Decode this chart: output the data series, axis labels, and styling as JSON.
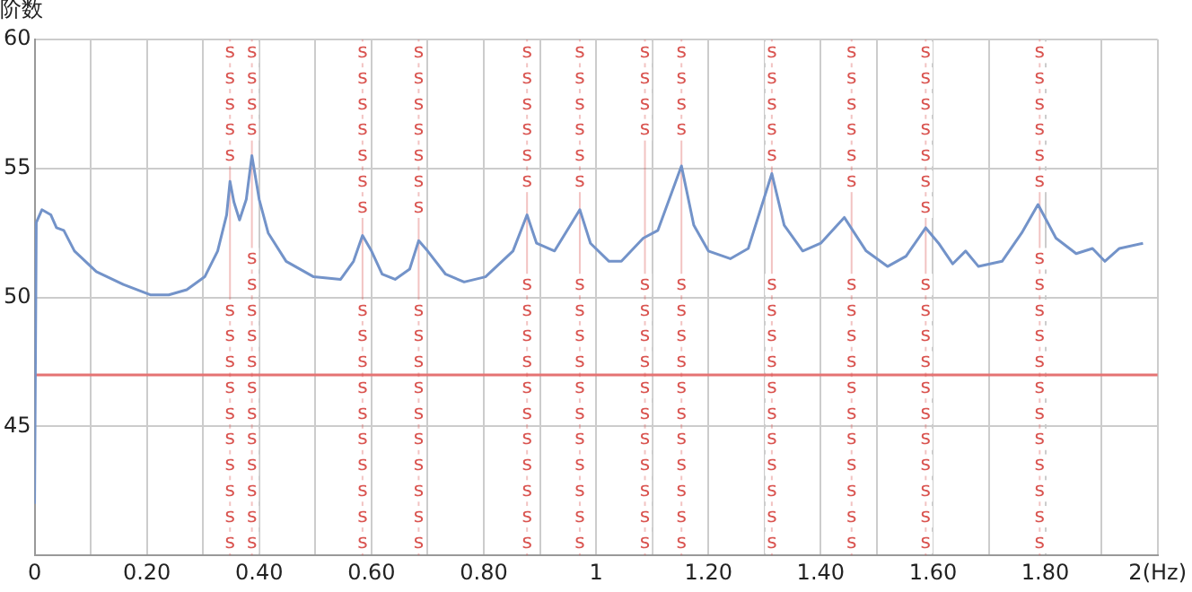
{
  "chart_data": {
    "type": "line",
    "ylabel": "阶数",
    "x": [
      0,
      0.003,
      0.013,
      0.029,
      0.039,
      0.052,
      0.071,
      0.11,
      0.158,
      0.206,
      0.239,
      0.271,
      0.303,
      0.326,
      0.342,
      0.348,
      0.355,
      0.365,
      0.377,
      0.387,
      0.4,
      0.416,
      0.448,
      0.497,
      0.545,
      0.568,
      0.584,
      0.6,
      0.619,
      0.642,
      0.668,
      0.684,
      0.7,
      0.732,
      0.765,
      0.803,
      0.852,
      0.877,
      0.894,
      0.926,
      0.971,
      0.99,
      1.023,
      1.045,
      1.084,
      1.11,
      1.152,
      1.174,
      1.2,
      1.239,
      1.271,
      1.313,
      1.335,
      1.368,
      1.4,
      1.442,
      1.481,
      1.519,
      1.552,
      1.587,
      1.61,
      1.635,
      1.658,
      1.681,
      1.723,
      1.758,
      1.787,
      1.819,
      1.855,
      1.884,
      1.906,
      1.932,
      1.974
    ],
    "series": [
      {
        "color": "#7393c9",
        "values": [
          42,
          52.9,
          53.4,
          53.2,
          52.7,
          52.6,
          51.8,
          51.0,
          50.5,
          50.1,
          50.1,
          50.3,
          50.8,
          51.8,
          53.2,
          54.5,
          53.7,
          53.0,
          53.8,
          55.5,
          53.8,
          52.5,
          51.4,
          50.8,
          50.7,
          51.4,
          52.4,
          51.8,
          50.9,
          50.7,
          51.1,
          52.2,
          51.8,
          50.9,
          50.6,
          50.8,
          51.8,
          53.2,
          52.1,
          51.8,
          53.4,
          52.1,
          51.4,
          51.4,
          52.3,
          52.6,
          55.1,
          52.8,
          51.8,
          51.5,
          51.9,
          54.8,
          52.8,
          51.8,
          52.1,
          53.1,
          51.8,
          51.2,
          51.6,
          52.7,
          52.1,
          51.3,
          51.8,
          51.2,
          51.4,
          52.5,
          53.6,
          52.3,
          51.7,
          51.9,
          51.4,
          51.9,
          52.1
        ]
      }
    ],
    "xlim": [
      0,
      2
    ],
    "ylim": [
      40,
      60
    ],
    "xticks": [
      0,
      {
        "value": 0.1,
        "label": null
      },
      {
        "value": 0.2,
        "label": "0.20"
      },
      {
        "value": 0.3,
        "label": null
      },
      {
        "value": 0.4,
        "label": "0.40"
      },
      {
        "value": 0.5,
        "label": null
      },
      {
        "value": 0.6,
        "label": "0.60"
      },
      {
        "value": 0.7,
        "label": null
      },
      {
        "value": 0.8,
        "label": "0.80"
      },
      {
        "value": 0.9,
        "label": null
      },
      1,
      {
        "value": 1.1,
        "label": null
      },
      {
        "value": 1.2,
        "label": "1.20"
      },
      {
        "value": 1.3,
        "label": null
      },
      {
        "value": 1.4,
        "label": "1.40"
      },
      {
        "value": 1.5,
        "label": null
      },
      {
        "value": 1.6,
        "label": "1.60"
      },
      {
        "value": 1.7,
        "label": null
      },
      {
        "value": 1.8,
        "label": "1.80"
      },
      {
        "value": 1.9,
        "label": null
      },
      {
        "value": 2,
        "label": "2(Hz)"
      }
    ],
    "yticks": [
      {
        "value": 40,
        "label": null
      },
      45,
      50,
      55,
      60
    ],
    "grid": true,
    "legend": false,
    "marker": "none",
    "line_style": "solid",
    "ref_lines": [
      {
        "axis": "y",
        "value": 47,
        "color": "#e57373"
      },
      {
        "axis": "x",
        "value": 0.348,
        "label": "s",
        "color": "#d9534f"
      },
      {
        "axis": "x",
        "value": 0.387,
        "label": "s",
        "color": "#d9534f"
      },
      {
        "axis": "x",
        "value": 0.584,
        "label": "s",
        "color": "#d9534f"
      },
      {
        "axis": "x",
        "value": 0.684,
        "label": "s",
        "color": "#d9534f"
      },
      {
        "axis": "x",
        "value": 0.877,
        "label": "s",
        "color": "#d9534f"
      },
      {
        "axis": "x",
        "value": 0.971,
        "label": "s",
        "color": "#d9534f"
      },
      {
        "axis": "x",
        "value": 1.087,
        "label": "s",
        "color": "#d9534f"
      },
      {
        "axis": "x",
        "value": 1.152,
        "label": "s",
        "color": "#d9534f"
      },
      {
        "axis": "x",
        "value": 1.313,
        "label": "s",
        "color": "#d9534f"
      },
      {
        "axis": "x",
        "value": 1.455,
        "label": "s",
        "color": "#d9534f"
      },
      {
        "axis": "x",
        "value": 1.587,
        "label": "s",
        "color": "#d9534f"
      },
      {
        "axis": "x",
        "value": 1.79,
        "label": "s",
        "color": "#d9534f"
      }
    ]
  }
}
